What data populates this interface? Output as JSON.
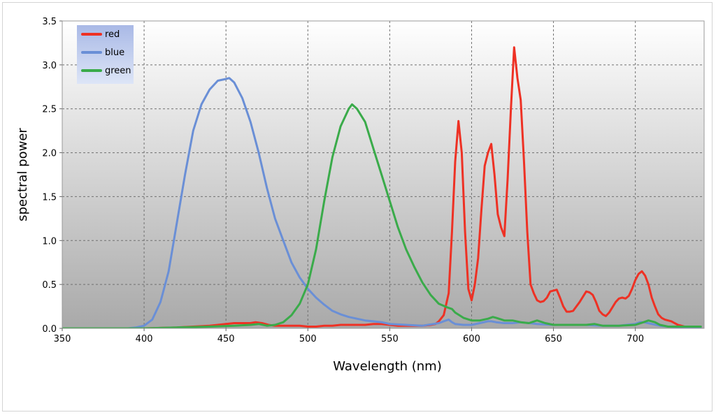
{
  "chart_data": {
    "type": "line",
    "title": "",
    "xlabel": "Wavelength (nm)",
    "ylabel": "spectral power",
    "xlim": [
      350,
      742
    ],
    "ylim": [
      0,
      3.5
    ],
    "xticks": [
      "350",
      "400",
      "450",
      "500",
      "550",
      "600",
      "650",
      "700"
    ],
    "yticks": [
      "0.0",
      "0.5",
      "1.0",
      "1.5",
      "2.0",
      "2.5",
      "3.0",
      "3.5"
    ],
    "grid": true,
    "legend_position": "top-left",
    "series": [
      {
        "name": "red",
        "color": "#ee3124",
        "x": [
          350,
          380,
          400,
          420,
          430,
          440,
          445,
          450,
          455,
          460,
          465,
          468,
          472,
          476,
          480,
          485,
          490,
          495,
          500,
          505,
          510,
          515,
          520,
          525,
          530,
          535,
          540,
          545,
          550,
          555,
          560,
          565,
          570,
          575,
          578,
          580,
          583,
          586,
          588,
          590,
          592,
          594,
          596,
          598,
          600,
          602,
          604,
          606,
          608,
          610,
          612,
          614,
          616,
          618,
          620,
          622,
          624,
          626,
          628,
          630,
          632,
          634,
          636,
          638,
          640,
          642,
          644,
          646,
          648,
          650,
          652,
          654,
          656,
          658,
          660,
          662,
          664,
          666,
          668,
          670,
          672,
          674,
          676,
          678,
          680,
          682,
          684,
          686,
          688,
          690,
          692,
          694,
          696,
          698,
          700,
          702,
          704,
          706,
          708,
          710,
          712,
          714,
          716,
          718,
          720,
          722,
          724,
          726,
          728,
          730,
          733,
          736,
          740
        ],
        "y": [
          0,
          0,
          0,
          0.01,
          0.02,
          0.03,
          0.04,
          0.05,
          0.06,
          0.06,
          0.06,
          0.07,
          0.06,
          0.04,
          0.03,
          0.03,
          0.03,
          0.03,
          0.02,
          0.02,
          0.03,
          0.03,
          0.04,
          0.04,
          0.04,
          0.04,
          0.05,
          0.05,
          0.04,
          0.03,
          0.03,
          0.03,
          0.03,
          0.04,
          0.05,
          0.08,
          0.15,
          0.4,
          1.1,
          1.9,
          2.36,
          2.0,
          1.1,
          0.45,
          0.32,
          0.5,
          0.8,
          1.35,
          1.85,
          2.0,
          2.1,
          1.75,
          1.3,
          1.15,
          1.05,
          1.7,
          2.5,
          3.2,
          2.85,
          2.6,
          1.9,
          1.1,
          0.5,
          0.4,
          0.32,
          0.3,
          0.31,
          0.35,
          0.42,
          0.43,
          0.44,
          0.35,
          0.25,
          0.19,
          0.19,
          0.2,
          0.25,
          0.3,
          0.36,
          0.42,
          0.41,
          0.38,
          0.3,
          0.2,
          0.16,
          0.14,
          0.18,
          0.24,
          0.3,
          0.34,
          0.35,
          0.34,
          0.37,
          0.45,
          0.55,
          0.62,
          0.65,
          0.6,
          0.5,
          0.35,
          0.25,
          0.16,
          0.12,
          0.1,
          0.09,
          0.08,
          0.06,
          0.04,
          0.03,
          0.02,
          0.01,
          0.01,
          0
        ]
      },
      {
        "name": "blue",
        "color": "#6a8fd6",
        "x": [
          350,
          370,
          380,
          390,
          395,
          400,
          405,
          410,
          415,
          420,
          425,
          430,
          435,
          440,
          445,
          450,
          452,
          455,
          460,
          465,
          470,
          475,
          480,
          485,
          490,
          495,
          500,
          505,
          510,
          515,
          520,
          525,
          530,
          535,
          540,
          545,
          550,
          560,
          570,
          580,
          583,
          586,
          588,
          590,
          595,
          600,
          605,
          610,
          612,
          615,
          620,
          625,
          630,
          640,
          650,
          660,
          670,
          680,
          690,
          700,
          703,
          705,
          710,
          715,
          720,
          730,
          740
        ],
        "y": [
          0,
          0,
          0,
          0,
          0.01,
          0.03,
          0.1,
          0.3,
          0.65,
          1.2,
          1.75,
          2.25,
          2.55,
          2.72,
          2.82,
          2.84,
          2.85,
          2.8,
          2.62,
          2.35,
          2.0,
          1.6,
          1.25,
          1.0,
          0.75,
          0.58,
          0.45,
          0.35,
          0.27,
          0.2,
          0.16,
          0.13,
          0.11,
          0.09,
          0.08,
          0.07,
          0.05,
          0.04,
          0.03,
          0.06,
          0.08,
          0.1,
          0.07,
          0.05,
          0.04,
          0.04,
          0.06,
          0.08,
          0.08,
          0.07,
          0.06,
          0.06,
          0.07,
          0.05,
          0.04,
          0.04,
          0.04,
          0.03,
          0.03,
          0.05,
          0.07,
          0.07,
          0.05,
          0.03,
          0.02,
          0.01,
          0
        ]
      },
      {
        "name": "green",
        "color": "#3aab4a",
        "x": [
          350,
          380,
          400,
          420,
          440,
          455,
          465,
          470,
          475,
          480,
          485,
          490,
          495,
          500,
          505,
          510,
          515,
          520,
          525,
          527,
          530,
          535,
          540,
          545,
          550,
          555,
          560,
          565,
          570,
          575,
          580,
          585,
          588,
          590,
          595,
          600,
          605,
          610,
          613,
          615,
          620,
          625,
          630,
          635,
          640,
          645,
          650,
          660,
          670,
          675,
          680,
          690,
          700,
          705,
          708,
          712,
          715,
          720,
          725,
          730,
          740
        ],
        "y": [
          0,
          0,
          0,
          0.01,
          0.02,
          0.03,
          0.04,
          0.05,
          0.03,
          0.04,
          0.07,
          0.15,
          0.28,
          0.5,
          0.9,
          1.45,
          1.95,
          2.3,
          2.5,
          2.55,
          2.5,
          2.35,
          2.05,
          1.75,
          1.45,
          1.15,
          0.9,
          0.7,
          0.52,
          0.38,
          0.28,
          0.24,
          0.22,
          0.18,
          0.12,
          0.09,
          0.09,
          0.11,
          0.13,
          0.12,
          0.09,
          0.09,
          0.07,
          0.06,
          0.09,
          0.06,
          0.04,
          0.04,
          0.04,
          0.05,
          0.03,
          0.03,
          0.04,
          0.07,
          0.09,
          0.07,
          0.04,
          0.02,
          0.02,
          0.02,
          0.02
        ]
      }
    ]
  }
}
